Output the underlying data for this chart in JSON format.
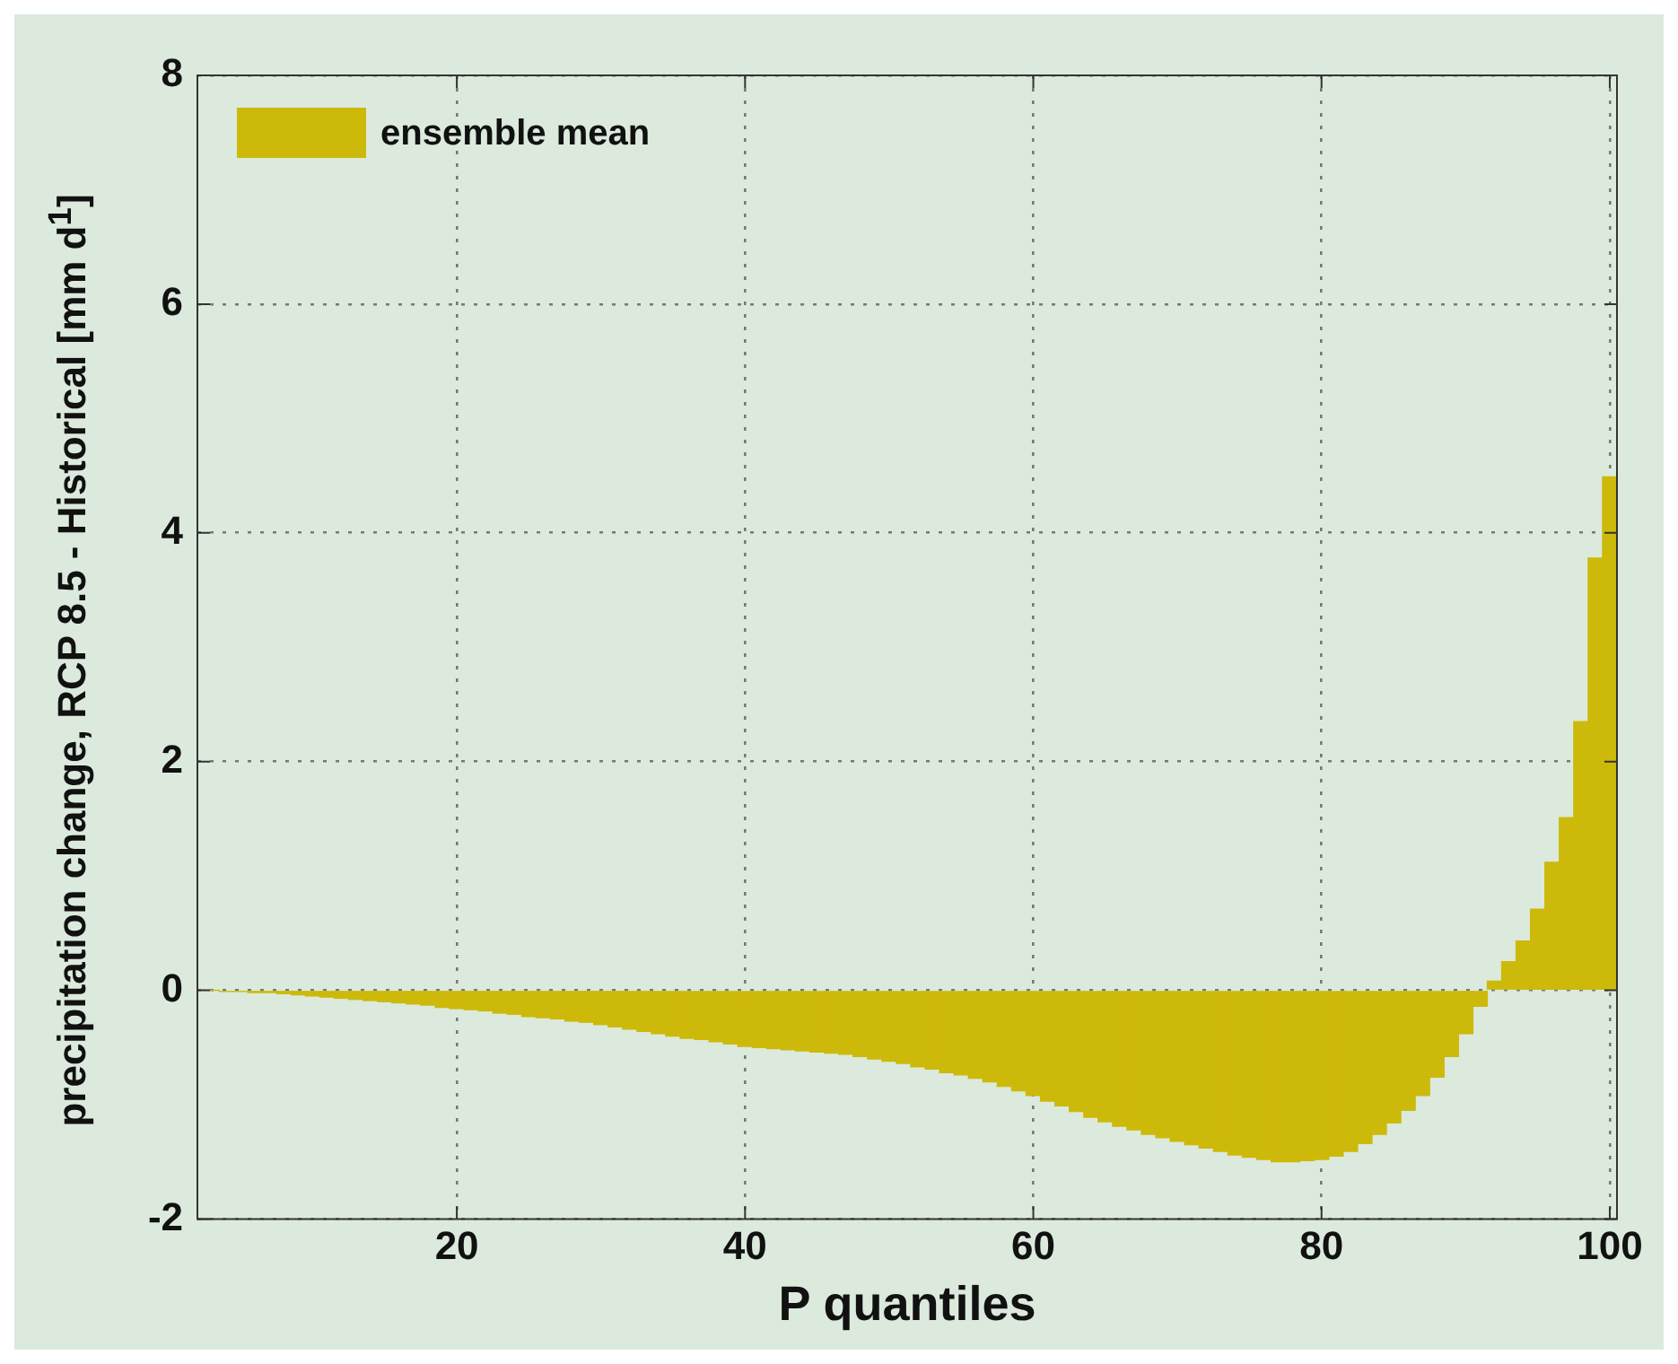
{
  "chart_data": {
    "type": "bar",
    "xlabel": "P quantiles",
    "ylabel": "precipitation change, RCP 8.5 - Historical [mm d$^{1}$]",
    "x": [
      2,
      3,
      4,
      5,
      6,
      7,
      8,
      9,
      10,
      11,
      12,
      13,
      14,
      15,
      16,
      17,
      18,
      19,
      20,
      21,
      22,
      23,
      24,
      25,
      26,
      27,
      28,
      29,
      30,
      31,
      32,
      33,
      34,
      35,
      36,
      37,
      38,
      39,
      40,
      41,
      42,
      43,
      44,
      45,
      46,
      47,
      48,
      49,
      50,
      51,
      52,
      53,
      54,
      55,
      56,
      57,
      58,
      59,
      60,
      61,
      62,
      63,
      64,
      65,
      66,
      67,
      68,
      69,
      70,
      71,
      72,
      73,
      74,
      75,
      76,
      77,
      78,
      79,
      80,
      81,
      82,
      83,
      84,
      85,
      86,
      87,
      88,
      89,
      90,
      91,
      92,
      93,
      94,
      95,
      96,
      97,
      98,
      99,
      100
    ],
    "series": [
      {
        "name": "ensemble mean",
        "color": "#cdb90a",
        "values": [
          0,
          0,
          -0.01,
          -0.01,
          -0.02,
          -0.02,
          -0.03,
          -0.04,
          -0.05,
          -0.06,
          -0.07,
          -0.08,
          -0.09,
          -0.1,
          -0.11,
          -0.12,
          -0.13,
          -0.15,
          -0.16,
          -0.17,
          -0.18,
          -0.2,
          -0.21,
          -0.23,
          -0.24,
          -0.25,
          -0.27,
          -0.28,
          -0.3,
          -0.32,
          -0.34,
          -0.36,
          -0.38,
          -0.4,
          -0.42,
          -0.43,
          -0.45,
          -0.47,
          -0.49,
          -0.5,
          -0.51,
          -0.52,
          -0.53,
          -0.54,
          -0.55,
          -0.56,
          -0.58,
          -0.6,
          -0.62,
          -0.64,
          -0.67,
          -0.69,
          -0.72,
          -0.74,
          -0.77,
          -0.8,
          -0.84,
          -0.88,
          -0.92,
          -0.97,
          -1.01,
          -1.06,
          -1.11,
          -1.15,
          -1.19,
          -1.22,
          -1.26,
          -1.29,
          -1.32,
          -1.35,
          -1.38,
          -1.41,
          -1.44,
          -1.46,
          -1.48,
          -1.5,
          -1.5,
          -1.49,
          -1.48,
          -1.45,
          -1.41,
          -1.34,
          -1.26,
          -1.16,
          -1.05,
          -0.92,
          -0.76,
          -0.58,
          -0.38,
          -0.14,
          0.08,
          0.25,
          0.43,
          0.71,
          1.12,
          1.51,
          2.35,
          3.78,
          4.49
        ]
      }
    ],
    "xlim": [
      2,
      100.5
    ],
    "xticks": [
      20,
      40,
      60,
      80,
      100
    ],
    "ylim": [
      -2,
      8
    ],
    "yticks": [
      -2,
      0,
      2,
      4,
      6,
      8
    ],
    "grid": true,
    "legend": "top left"
  }
}
